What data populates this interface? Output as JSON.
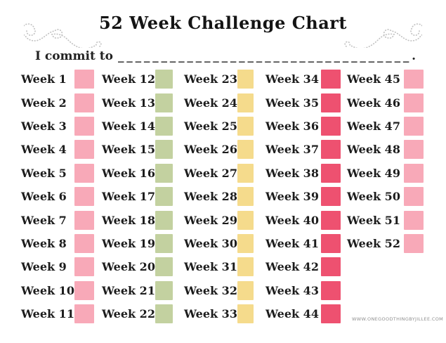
{
  "page": {
    "title": "52 Week Challenge Chart"
  },
  "commit": {
    "prefix": "I commit to",
    "blank": "__________________________________",
    "suffix": "."
  },
  "grid": {
    "columns": [
      {
        "group": "weeks-1-11",
        "color": "#F8A9B8",
        "weeks": [
          "Week 1",
          "Week 2",
          "Week 3",
          "Week 4",
          "Week 5",
          "Week 6",
          "Week 7",
          "Week 8",
          "Week 9",
          "Week 10",
          "Week 11"
        ]
      },
      {
        "group": "weeks-12-22",
        "color": "#C3D1A0",
        "weeks": [
          "Week 12",
          "Week 13",
          "Week 14",
          "Week 15",
          "Week 16",
          "Week 17",
          "Week 18",
          "Week 19",
          "Week 20",
          "Week 21",
          "Week 22"
        ]
      },
      {
        "group": "weeks-23-33",
        "color": "#F5DB8C",
        "weeks": [
          "Week 23",
          "Week 24",
          "Week 25",
          "Week 26",
          "Week 27",
          "Week 28",
          "Week 29",
          "Week 30",
          "Week 31",
          "Week 32",
          "Week 33"
        ]
      },
      {
        "group": "weeks-34-44",
        "color": "#EE5170",
        "weeks": [
          "Week 34",
          "Week 35",
          "Week 36",
          "Week 37",
          "Week 38",
          "Week 39",
          "Week 40",
          "Week 41",
          "Week 42",
          "Week 43",
          "Week 44"
        ]
      },
      {
        "group": "weeks-45-52",
        "color": "#F8A9B8",
        "weeks": [
          "Week 45",
          "Week 46",
          "Week 47",
          "Week 48",
          "Week 49",
          "Week 50",
          "Week 51",
          "Week 52"
        ]
      }
    ]
  },
  "watermark": "WWW.ONEGOODTHINGBYJILLEE.COM",
  "colors": {
    "pink": "#F8A9B8",
    "green": "#C3D1A0",
    "yellow": "#F5DB8C",
    "red": "#EE5170"
  }
}
